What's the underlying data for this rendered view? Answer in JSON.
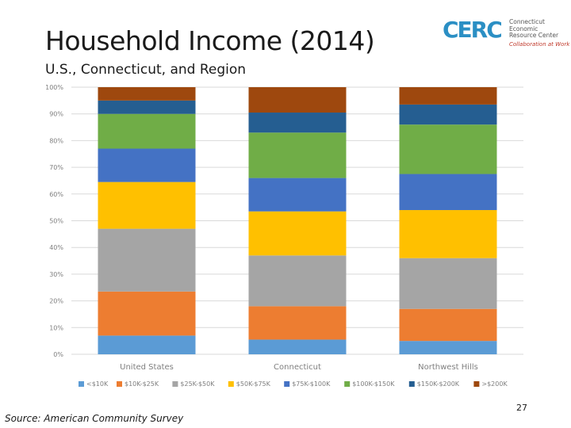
{
  "slide": {
    "title": "Household Income (2014)",
    "subtitle": "U.S., Connecticut, and Region",
    "source": "Source: American Community Survey",
    "page_number": "27"
  },
  "logo": {
    "mark": "CERC",
    "name_line1": "Connecticut",
    "name_line2": "Economic",
    "name_line3": "Resource Center",
    "tagline": "Collaboration at Work",
    "color": "#2b8fc4"
  },
  "chart_data": {
    "type": "bar",
    "stacked": true,
    "title": "",
    "xlabel": "",
    "ylabel": "",
    "ylim": [
      0,
      100
    ],
    "y_ticks": [
      "0%",
      "10%",
      "20%",
      "30%",
      "40%",
      "50%",
      "60%",
      "70%",
      "80%",
      "90%",
      "100%"
    ],
    "grid": true,
    "legend_position": "bottom",
    "categories": [
      "United States",
      "Connecticut",
      "Northwest Hills"
    ],
    "series": [
      {
        "name": "<$10K",
        "color": "#5b9bd5",
        "values": [
          7,
          5.5,
          5
        ]
      },
      {
        "name": "$10K-$25K",
        "color": "#ed7d31",
        "values": [
          16.5,
          12.5,
          12
        ]
      },
      {
        "name": "$25K-$50K",
        "color": "#a5a5a5",
        "values": [
          23.5,
          19,
          19
        ]
      },
      {
        "name": "$50K-$75K",
        "color": "#ffc000",
        "values": [
          17.5,
          16.5,
          18
        ]
      },
      {
        "name": "$75K-$100K",
        "color": "#4472c4",
        "values": [
          12.5,
          12.5,
          13.5
        ]
      },
      {
        "name": "$100K-$150K",
        "color": "#70ad47",
        "values": [
          13,
          17,
          18.5
        ]
      },
      {
        "name": "$150K-$200K",
        "color": "#255e91",
        "values": [
          5,
          7.5,
          7.5
        ]
      },
      {
        "name": ">$200K",
        "color": "#9e480e",
        "values": [
          5,
          9.5,
          6.5
        ]
      }
    ]
  }
}
